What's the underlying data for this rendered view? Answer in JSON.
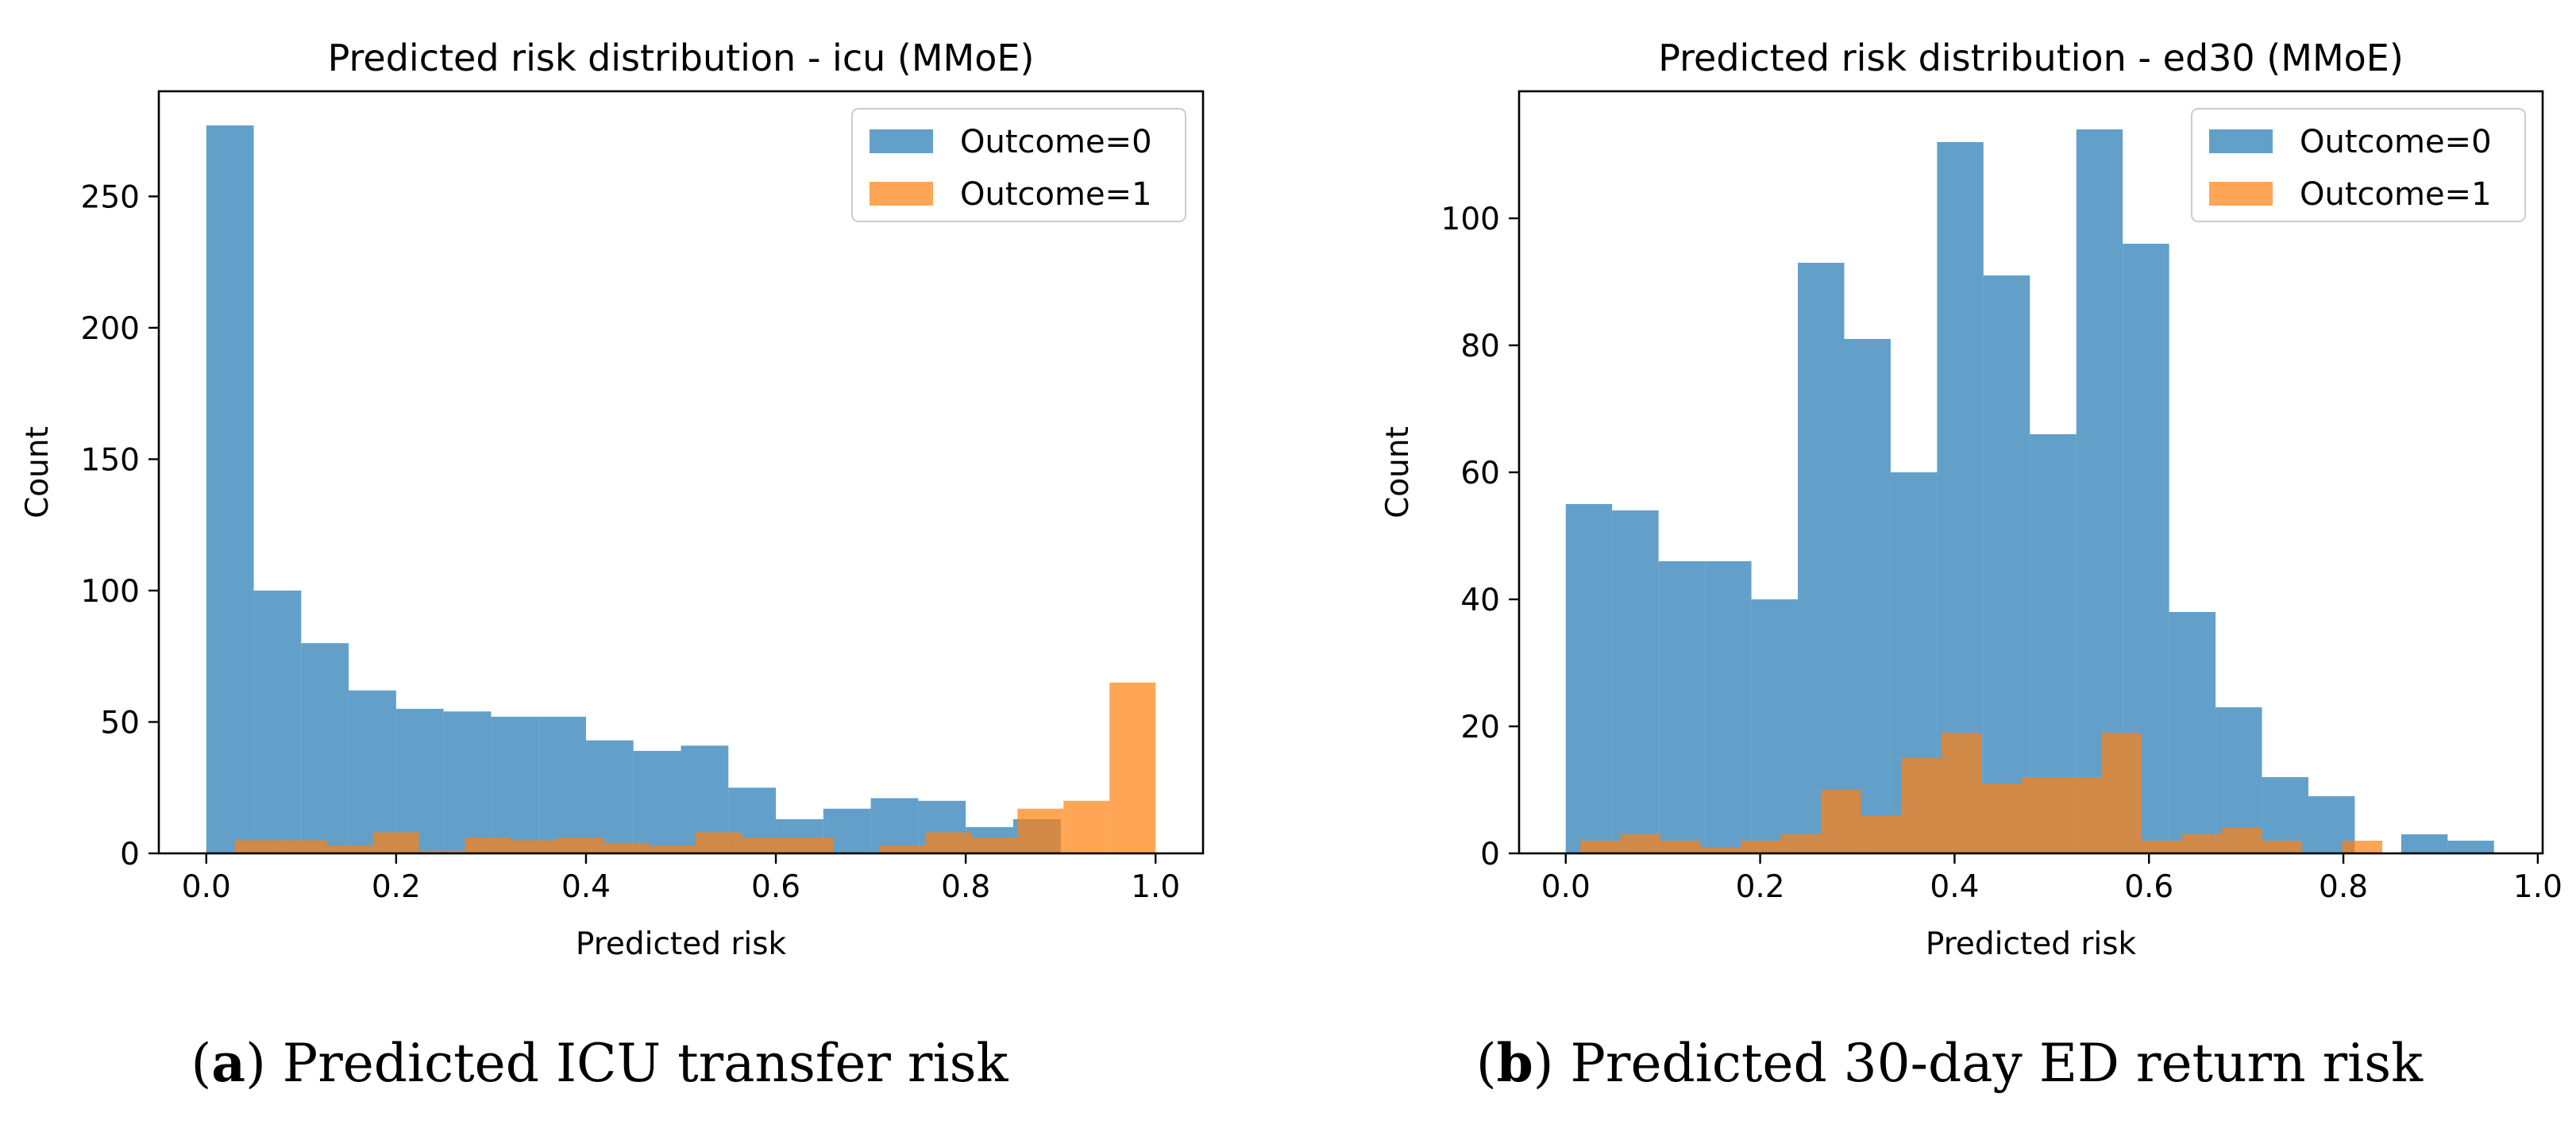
{
  "captions": [
    {
      "letter": "a",
      "text": ") Predicted ICU transfer risk",
      "open": "("
    },
    {
      "letter": "b",
      "text": ") Predicted 30-day ED return risk",
      "open": "("
    }
  ],
  "colors": {
    "outcome0": "#1f77b4",
    "outcome1": "#ff7f0e",
    "alpha": 0.7
  },
  "chart_data": [
    {
      "type": "bar",
      "title": "Predicted risk distribution - icu (MMoE)",
      "xlabel": "Predicted risk",
      "ylabel": "Count",
      "xlim": [
        -0.05,
        1.05
      ],
      "ylim": [
        0,
        290
      ],
      "xticks": [
        0.0,
        0.2,
        0.4,
        0.6,
        0.8,
        1.0
      ],
      "xtick_labels": [
        "0.0",
        "0.2",
        "0.4",
        "0.6",
        "0.8",
        "1.0"
      ],
      "yticks": [
        0,
        50,
        100,
        150,
        200,
        250
      ],
      "ytick_labels": [
        "0",
        "50",
        "100",
        "150",
        "200",
        "250"
      ],
      "legend_position": "top-right",
      "series": [
        {
          "name": "Outcome=0",
          "bin_range": [
            0.0,
            1.0
          ],
          "values": [
            277,
            100,
            80,
            62,
            55,
            54,
            52,
            52,
            43,
            39,
            41,
            25,
            13,
            17,
            21,
            20,
            10,
            13,
            0,
            0
          ]
        },
        {
          "name": "Outcome=1",
          "bin_range": [
            0.03,
            1.0
          ],
          "values": [
            5,
            5,
            3,
            8,
            1,
            6,
            5,
            6,
            4,
            3,
            8,
            6,
            6,
            0,
            3,
            8,
            6,
            17,
            20,
            65
          ]
        }
      ]
    },
    {
      "type": "bar",
      "title": "Predicted risk distribution - ed30 (MMoE)",
      "xlabel": "Predicted risk",
      "ylabel": "Count",
      "xlim": [
        -0.048,
        1.005
      ],
      "ylim": [
        0,
        120
      ],
      "xticks": [
        0.0,
        0.2,
        0.4,
        0.6,
        0.8,
        1.0
      ],
      "xtick_labels": [
        "0.0",
        "0.2",
        "0.4",
        "0.6",
        "0.8",
        "1.0"
      ],
      "yticks": [
        0,
        20,
        40,
        60,
        80,
        100
      ],
      "ytick_labels": [
        "0",
        "20",
        "40",
        "60",
        "80",
        "100"
      ],
      "legend_position": "top-right",
      "series": [
        {
          "name": "Outcome=0",
          "bin_range": [
            0.0,
            0.955
          ],
          "values": [
            55,
            54,
            46,
            46,
            40,
            93,
            81,
            60,
            112,
            91,
            66,
            114,
            96,
            38,
            23,
            12,
            9,
            0,
            3,
            2
          ]
        },
        {
          "name": "Outcome=1",
          "bin_range": [
            0.015,
            0.84
          ],
          "values": [
            2,
            3,
            2,
            1,
            2,
            3,
            10,
            6,
            15,
            19,
            11,
            12,
            12,
            19,
            2,
            3,
            4,
            2,
            0,
            2
          ]
        }
      ]
    }
  ]
}
